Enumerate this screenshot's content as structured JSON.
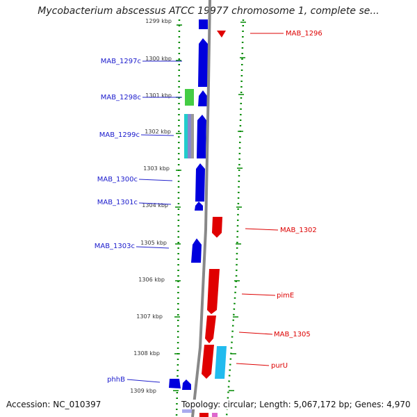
{
  "title": "Mycobacterium abscessus ATCC 19977 chromosome 1, complete se...",
  "footer": {
    "accession": "Accession: NC_010397",
    "topology": "Topology: circular; Length: 5,067,172 bp; Genes: 4,970"
  },
  "colors": {
    "forward": "#e00000",
    "reverse": "#0000dd",
    "backbone": "#888888",
    "ticks": "#008800",
    "tick_label": "#333333",
    "other_genes": [
      "#44cc44",
      "#22cccc",
      "#8888cc",
      "#dd66cc",
      "#aaaaee"
    ]
  },
  "ruler": {
    "unit": "kbp",
    "ticks": [
      "1299 kbp",
      "1300 kbp",
      "1301 kbp",
      "1302 kbp",
      "1303 kbp",
      "1304 kbp",
      "1305 kbp",
      "1306 kbp",
      "1307 kbp",
      "1308 kbp",
      "1309 kbp"
    ]
  },
  "genes": {
    "reverse": [
      {
        "label": "MAB_1297c"
      },
      {
        "label": "MAB_1298c"
      },
      {
        "label": "MAB_1299c"
      },
      {
        "label": "MAB_1300c"
      },
      {
        "label": "MAB_1301c"
      },
      {
        "label": "MAB_1303c"
      },
      {
        "label": "phhB"
      }
    ],
    "forward": [
      {
        "label": "MAB_1296"
      },
      {
        "label": "MAB_1302"
      },
      {
        "label": "pimE"
      },
      {
        "label": "MAB_1305"
      },
      {
        "label": "purU"
      }
    ]
  }
}
